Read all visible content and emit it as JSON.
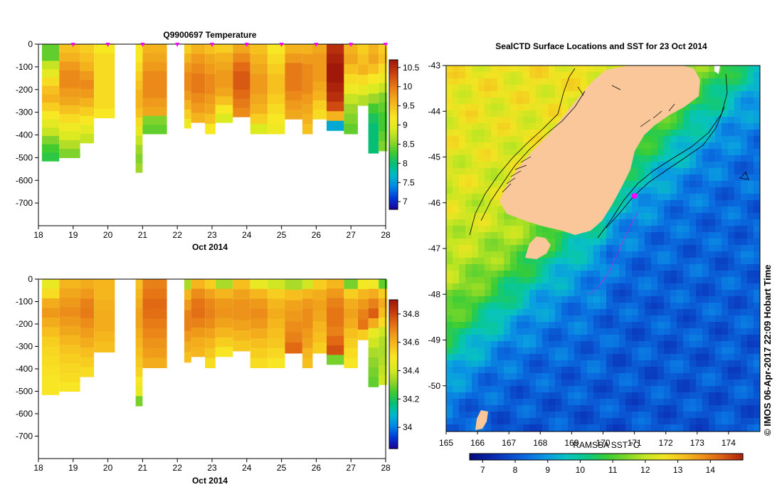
{
  "colors": {
    "temp_scale": [
      "#1a0096",
      "#0036d8",
      "#0087e6",
      "#00b8c8",
      "#06bf74",
      "#42ca2e",
      "#9ed72a",
      "#dcea20",
      "#f8e824",
      "#f6c01e",
      "#ef9a1a",
      "#e26a14",
      "#c43a0e",
      "#a0180a"
    ],
    "sst_scale": [
      "#070a7c",
      "#0a22a8",
      "#0a46c8",
      "#0a6ee0",
      "#0a9ce2",
      "#08c3c0",
      "#0bc886",
      "#36cc38",
      "#7ad62a",
      "#c4e622",
      "#f2e422",
      "#f4bf1e",
      "#eb8e18",
      "#d85a12",
      "#ad200c"
    ],
    "land": "#f9c79a",
    "marker": "#ff00ff"
  },
  "panels": {
    "temperature": {
      "title": "Q9900697  Temperature",
      "xlabel": "Oct 2014",
      "x_ticks": [
        "18",
        "19",
        "20",
        "21",
        "22",
        "23",
        "24",
        "25",
        "26",
        "27",
        "28"
      ],
      "y_ticks": [
        "0",
        "-100",
        "-200",
        "-300",
        "-400",
        "-500",
        "-600",
        "-700"
      ],
      "colorbar_ticks": [
        "10.5",
        "10",
        "9.5",
        "9",
        "8.5",
        "8",
        "7.5",
        "7"
      ]
    },
    "salinity": {
      "xlabel": "Oct 2014",
      "x_ticks": [
        "18",
        "19",
        "20",
        "21",
        "22",
        "23",
        "24",
        "25",
        "26",
        "27",
        "28"
      ],
      "y_ticks": [
        "0",
        "-100",
        "-200",
        "-300",
        "-400",
        "-500",
        "-600",
        "-700"
      ],
      "colorbar_ticks": [
        "34.8",
        "34.6",
        "34.4",
        "34.2",
        "34"
      ]
    },
    "map": {
      "title": "SealCTD Surface Locations and SST for 23 Oct 2014",
      "lat_ticks": [
        "-43",
        "-44",
        "-45",
        "-46",
        "-47",
        "-48",
        "-49",
        "-50"
      ],
      "lon_ticks": [
        "165",
        "166",
        "167",
        "168",
        "169",
        "170",
        "171",
        "172",
        "173",
        "174"
      ],
      "colorbar_label": "RAMSSA SST °C",
      "colorbar_ticks": [
        "7",
        "8",
        "9",
        "10",
        "11",
        "12",
        "13",
        "14"
      ],
      "stamp": "© IMOS 06-Apr-2017 22:09 Hobart Time"
    }
  },
  "chart_data": [
    {
      "type": "heatmap",
      "title": "Q9900697  Temperature",
      "xlabel": "Oct 2014",
      "ylabel": "",
      "xlim": [
        18,
        28
      ],
      "ylim": [
        -800,
        0
      ],
      "color_range": [
        6.8,
        10.7
      ],
      "grid": false,
      "profile_marks": [
        19.0,
        20.0,
        21.0,
        22.0,
        23.0,
        24.0,
        25.0,
        26.0,
        27.0,
        28.0
      ],
      "profiles": [
        {
          "t0": 18.1,
          "t1": 18.6,
          "bottom": -515,
          "values": [
            8.4,
            8.4,
            8.8,
            9.0,
            9.3,
            9.5,
            9.6,
            9.4,
            9.2,
            9.0,
            8.8,
            8.5,
            8.3,
            8.2
          ]
        },
        {
          "t0": 18.6,
          "t1": 19.2,
          "bottom": -500,
          "values": [
            9.5,
            9.6,
            9.8,
            9.9,
            9.9,
            9.8,
            9.7,
            9.5,
            9.3,
            9.1,
            8.9,
            8.7,
            8.5
          ]
        },
        {
          "t0": 19.2,
          "t1": 19.6,
          "bottom": -435,
          "values": [
            9.4,
            9.5,
            9.6,
            9.8,
            9.9,
            9.8,
            9.6,
            9.4,
            9.2,
            9.0,
            8.8
          ]
        },
        {
          "t0": 19.6,
          "t1": 20.2,
          "bottom": -325,
          "values": [
            9.2,
            9.3,
            9.3,
            9.3,
            9.3,
            9.3,
            9.3,
            9.2
          ]
        },
        {
          "t0": 20.8,
          "t1": 21.0,
          "bottom": -565,
          "values": [
            9.2,
            9.2,
            9.3,
            9.4,
            9.5,
            9.6,
            9.6,
            9.5,
            9.3,
            9.0,
            8.8,
            8.6,
            8.5,
            8.6
          ]
        },
        {
          "t0": 21.0,
          "t1": 21.7,
          "bottom": -395,
          "values": [
            9.6,
            9.7,
            9.8,
            9.9,
            9.9,
            9.9,
            9.8,
            9.7,
            8.5,
            8.4
          ]
        },
        {
          "t0": 22.2,
          "t1": 22.4,
          "bottom": -370,
          "values": [
            9.4,
            9.6,
            9.8,
            9.9,
            9.9,
            9.8,
            9.6,
            9.4,
            9.1
          ]
        },
        {
          "t0": 22.4,
          "t1": 22.8,
          "bottom": -345,
          "values": [
            9.6,
            9.8,
            9.9,
            10.0,
            10.0,
            9.9,
            9.8,
            9.6
          ]
        },
        {
          "t0": 22.8,
          "t1": 23.1,
          "bottom": -395,
          "values": [
            9.5,
            9.7,
            9.8,
            9.9,
            9.9,
            9.8,
            9.7,
            9.5,
            9.2
          ]
        },
        {
          "t0": 23.1,
          "t1": 23.6,
          "bottom": -345,
          "values": [
            9.4,
            9.6,
            9.7,
            9.8,
            9.8,
            9.7,
            9.5,
            9.2,
            8.9
          ]
        },
        {
          "t0": 23.6,
          "t1": 24.1,
          "bottom": -320,
          "values": [
            9.7,
            9.9,
            10.1,
            10.2,
            10.2,
            10.1,
            10.0,
            9.9
          ]
        },
        {
          "t0": 24.1,
          "t1": 24.6,
          "bottom": -395,
          "values": [
            9.5,
            9.6,
            9.7,
            9.8,
            9.8,
            9.7,
            9.6,
            9.4,
            8.9
          ]
        },
        {
          "t0": 24.6,
          "t1": 25.1,
          "bottom": -395,
          "values": [
            9.2,
            9.3,
            9.4,
            9.5,
            9.5,
            9.4,
            9.3,
            9.2,
            9.1
          ]
        },
        {
          "t0": 25.1,
          "t1": 25.6,
          "bottom": -330,
          "values": [
            9.6,
            9.8,
            10.0,
            10.0,
            10.0,
            9.9,
            9.8,
            9.7
          ]
        },
        {
          "t0": 25.6,
          "t1": 25.9,
          "bottom": -395,
          "values": [
            9.6,
            9.8,
            9.9,
            9.9,
            9.9,
            9.8,
            9.7,
            9.6,
            9.5
          ]
        },
        {
          "t0": 25.9,
          "t1": 26.3,
          "bottom": -330,
          "values": [
            9.7,
            9.8,
            9.8,
            9.8,
            9.7,
            9.6,
            9.4,
            9.3
          ]
        },
        {
          "t0": 26.3,
          "t1": 26.8,
          "bottom": -380,
          "values": [
            10.5,
            10.6,
            10.7,
            10.7,
            10.6,
            10.5,
            10.3,
            9.6,
            7.6
          ]
        },
        {
          "t0": 26.8,
          "t1": 27.2,
          "bottom": -395,
          "values": [
            9.6,
            9.7,
            9.5,
            9.3,
            9.1,
            8.8,
            8.6,
            8.5,
            8.4
          ]
        },
        {
          "t0": 27.2,
          "t1": 27.5,
          "bottom": -270,
          "values": [
            9.4,
            9.5,
            9.6,
            9.3,
            9.0,
            8.7
          ]
        },
        {
          "t0": 27.5,
          "t1": 27.8,
          "bottom": -480,
          "values": [
            9.6,
            9.7,
            9.5,
            9.2,
            8.9,
            8.6,
            8.3,
            8.1,
            8.0,
            8.0,
            8.0
          ]
        },
        {
          "t0": 27.8,
          "t1": 28.05,
          "bottom": -470,
          "values": [
            9.4,
            9.5,
            9.3,
            9.1,
            8.8,
            8.5,
            8.4,
            8.3,
            8.3,
            8.4,
            8.5
          ]
        }
      ]
    },
    {
      "type": "heatmap",
      "title": "",
      "xlabel": "Oct 2014",
      "ylabel": "",
      "xlim": [
        18,
        28
      ],
      "ylim": [
        -800,
        0
      ],
      "color_range": [
        33.85,
        34.9
      ],
      "grid": false,
      "profiles": [
        {
          "t0": 18.1,
          "t1": 18.6,
          "bottom": -515,
          "values": [
            34.45,
            34.52,
            34.62,
            34.66,
            34.62,
            34.58,
            34.55,
            34.53,
            34.52,
            34.51,
            34.5,
            34.5
          ]
        },
        {
          "t0": 18.6,
          "t1": 19.2,
          "bottom": -500,
          "values": [
            34.6,
            34.63,
            34.66,
            34.68,
            34.66,
            34.63,
            34.6,
            34.57,
            34.55,
            34.53,
            34.52,
            34.5
          ]
        },
        {
          "t0": 19.2,
          "t1": 19.6,
          "bottom": -435,
          "values": [
            34.62,
            34.66,
            34.7,
            34.71,
            34.68,
            34.65,
            34.62,
            34.58,
            34.55,
            34.52
          ]
        },
        {
          "t0": 19.6,
          "t1": 20.2,
          "bottom": -325,
          "values": [
            34.6,
            34.6,
            34.61,
            34.62,
            34.62,
            34.6,
            34.58
          ]
        },
        {
          "t0": 20.8,
          "t1": 21.0,
          "bottom": -565,
          "values": [
            34.58,
            34.6,
            34.62,
            34.64,
            34.64,
            34.62,
            34.6,
            34.58,
            34.56,
            34.54,
            34.5,
            34.45,
            34.3
          ]
        },
        {
          "t0": 21.0,
          "t1": 21.7,
          "bottom": -395,
          "values": [
            34.7,
            34.72,
            34.74,
            34.73,
            34.71,
            34.69,
            34.67,
            34.65,
            34.62
          ]
        },
        {
          "t0": 22.2,
          "t1": 22.4,
          "bottom": -370,
          "values": [
            34.35,
            34.6,
            34.66,
            34.7,
            34.7,
            34.66,
            34.62,
            34.58
          ]
        },
        {
          "t0": 22.4,
          "t1": 22.8,
          "bottom": -345,
          "values": [
            34.6,
            34.68,
            34.72,
            34.73,
            34.7,
            34.66,
            34.62,
            34.6
          ]
        },
        {
          "t0": 22.8,
          "t1": 23.1,
          "bottom": -395,
          "values": [
            34.55,
            34.64,
            34.69,
            34.7,
            34.68,
            34.64,
            34.6,
            34.56,
            34.52
          ]
        },
        {
          "t0": 23.1,
          "t1": 23.6,
          "bottom": -345,
          "values": [
            34.35,
            34.6,
            34.66,
            34.67,
            34.64,
            34.6,
            34.55,
            34.5
          ]
        },
        {
          "t0": 23.6,
          "t1": 24.1,
          "bottom": -320,
          "values": [
            34.58,
            34.64,
            34.67,
            34.67,
            34.64,
            34.6,
            34.56
          ]
        },
        {
          "t0": 24.1,
          "t1": 24.6,
          "bottom": -395,
          "values": [
            34.45,
            34.6,
            34.66,
            34.68,
            34.66,
            34.62,
            34.58,
            34.55,
            34.52
          ]
        },
        {
          "t0": 24.6,
          "t1": 25.1,
          "bottom": -395,
          "values": [
            34.4,
            34.55,
            34.6,
            34.62,
            34.6,
            34.58,
            34.56,
            34.53,
            34.5
          ]
        },
        {
          "t0": 25.1,
          "t1": 25.6,
          "bottom": -330,
          "values": [
            34.35,
            34.58,
            34.64,
            34.66,
            34.68,
            34.7,
            34.74
          ]
        },
        {
          "t0": 25.6,
          "t1": 25.9,
          "bottom": -395,
          "values": [
            34.4,
            34.6,
            34.66,
            34.68,
            34.68,
            34.66,
            34.64,
            34.6,
            34.58
          ]
        },
        {
          "t0": 25.9,
          "t1": 26.3,
          "bottom": -330,
          "values": [
            34.55,
            34.62,
            34.64,
            34.63,
            34.6,
            34.58,
            34.55
          ]
        },
        {
          "t0": 26.3,
          "t1": 26.8,
          "bottom": -380,
          "values": [
            34.6,
            34.66,
            34.7,
            34.72,
            34.72,
            34.7,
            34.74,
            34.78,
            34.3
          ]
        },
        {
          "t0": 26.8,
          "t1": 27.2,
          "bottom": -395,
          "values": [
            34.3,
            34.55,
            34.62,
            34.64,
            34.62,
            34.58,
            34.55,
            34.52,
            34.5
          ]
        },
        {
          "t0": 27.2,
          "t1": 27.5,
          "bottom": -270,
          "values": [
            34.48,
            34.6,
            34.66,
            34.7,
            34.72,
            34.55
          ]
        },
        {
          "t0": 27.5,
          "t1": 27.8,
          "bottom": -480,
          "values": [
            34.48,
            34.62,
            34.7,
            34.76,
            34.62,
            34.45,
            34.4,
            34.35,
            34.32,
            34.3,
            34.28
          ]
        },
        {
          "t0": 27.8,
          "t1": 28.05,
          "bottom": -470,
          "values": [
            34.28,
            34.55,
            34.62,
            34.58,
            34.52,
            34.4,
            34.36,
            34.35,
            34.36,
            34.38,
            34.4
          ]
        }
      ]
    },
    {
      "type": "heatmap",
      "title": "SealCTD Surface Locations and SST for 23 Oct 2014",
      "xlabel": "",
      "ylabel": "",
      "xlim": [
        165,
        175
      ],
      "ylim": [
        -51.0,
        -43.0
      ],
      "color_range": [
        6.6,
        15.0
      ],
      "colorbar_label": "RAMSSA SST °C",
      "grid": false,
      "sst_field": "west coast ~11-12 °C grading to 12-13 °C north, 7-9 °C in south-east",
      "track": [
        [
          171.1,
          -46.2
        ],
        [
          170.8,
          -46.6
        ],
        [
          170.4,
          -47.2
        ],
        [
          170.2,
          -47.5
        ],
        [
          169.9,
          -47.8
        ],
        [
          169.6,
          -48.0
        ]
      ],
      "surface_location": [
        171.0,
        -45.85
      ]
    }
  ]
}
